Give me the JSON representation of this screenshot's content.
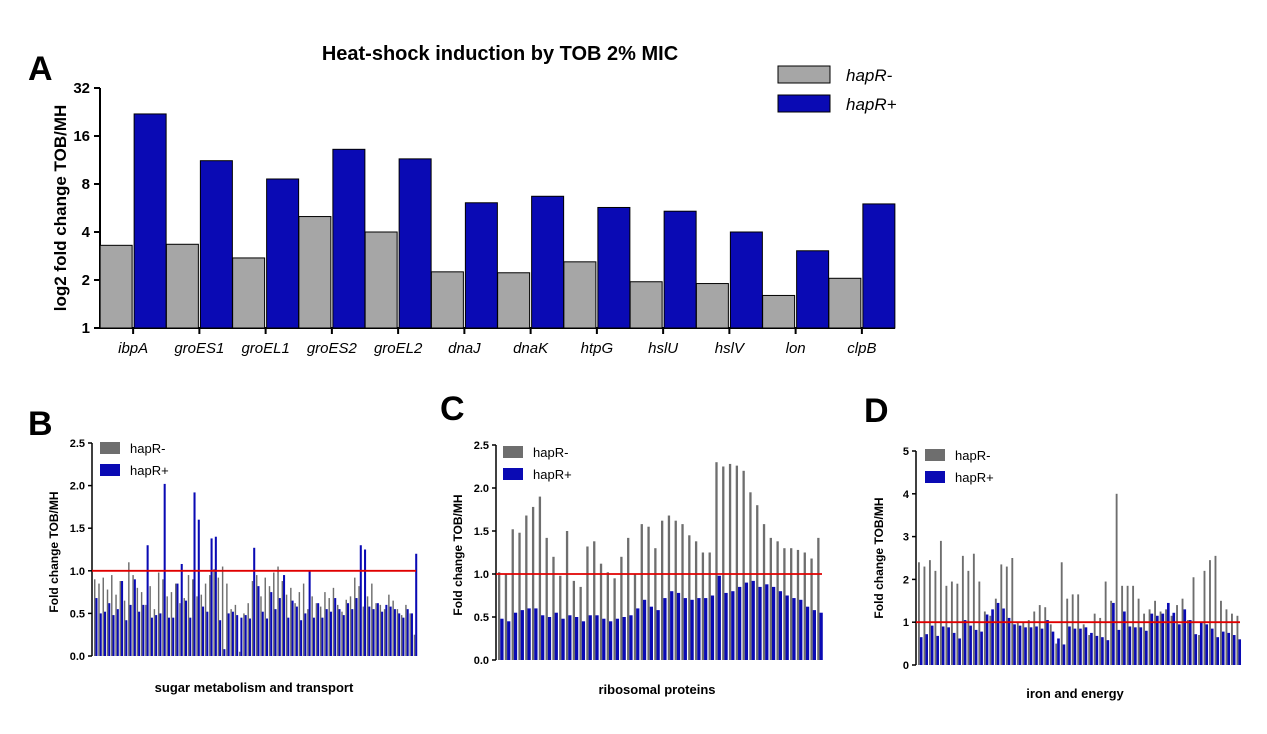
{
  "colors": {
    "hapR_minus_A": "#a6a6a6",
    "hapR_plus": "#0a0ab4",
    "hapR_minus_small": "#6e6e6e",
    "reference_line": "#e00000"
  },
  "panels": {
    "A": "A",
    "B": "B",
    "C": "C",
    "D": "D"
  },
  "chart_data": [
    {
      "panel": "A",
      "type": "bar",
      "title": "Heat-shock induction by TOB 2% MIC",
      "ylabel": "log2 fold change TOB/MH",
      "xlabel": "",
      "yscale": "log2",
      "ylim": [
        1,
        32
      ],
      "yticks": [
        "1",
        "2",
        "4",
        "8",
        "16",
        "32"
      ],
      "legend_position": "top-right",
      "categories": [
        "ibpA",
        "groES1",
        "groEL1",
        "groES2",
        "groEL2",
        "dnaJ",
        "dnaK",
        "htpG",
        "hslU",
        "hslV",
        "lon",
        "clpB"
      ],
      "series": [
        {
          "name": "hapR-",
          "values": [
            3.3,
            3.35,
            2.75,
            5.0,
            4.0,
            2.25,
            2.22,
            2.6,
            1.95,
            1.9,
            1.6,
            2.05
          ]
        },
        {
          "name": "hapR+",
          "values": [
            22,
            11.2,
            8.6,
            13.2,
            11.5,
            6.1,
            6.7,
            5.7,
            5.4,
            4.0,
            3.05,
            6.0
          ]
        }
      ]
    },
    {
      "panel": "B",
      "type": "bar",
      "title": "",
      "ylabel": "Fold change TOB/MH",
      "xlabel": "sugar metabolism and transport",
      "ylim": [
        0,
        2.5
      ],
      "yticks": [
        "0.0",
        "0.5",
        "1.0",
        "1.5",
        "2.0",
        "2.5"
      ],
      "reference_line": 1.0,
      "legend_position": "top-left",
      "series": [
        {
          "name": "hapR-",
          "values": [
            0.9,
            0.85,
            0.92,
            0.78,
            0.95,
            0.72,
            0.88,
            0.65,
            1.1,
            0.95,
            0.8,
            0.75,
            0.6,
            0.82,
            0.55,
            0.98,
            0.9,
            0.7,
            0.75,
            0.85,
            0.62,
            0.68,
            0.95,
            0.9,
            0.7,
            0.72,
            0.85,
            0.95,
            1.02,
            0.92,
            1.05,
            0.85,
            0.55,
            0.6,
            0.05,
            0.5,
            0.62,
            0.88,
            0.95,
            0.7,
            0.92,
            0.82,
            0.98,
            1.05,
            0.88,
            0.72,
            0.8,
            0.62,
            0.75,
            0.85,
            0.55,
            0.7,
            0.62,
            0.58,
            0.75,
            0.68,
            0.8,
            0.6,
            0.52,
            0.66,
            0.7,
            0.92,
            0.82,
            0.58,
            0.7,
            0.85,
            0.62,
            0.6,
            0.55,
            0.72,
            0.65,
            0.55,
            0.48,
            0.6,
            0.5,
            0.25
          ]
        },
        {
          "name": "hapR+",
          "values": [
            0.68,
            0.5,
            0.52,
            0.62,
            0.48,
            0.55,
            0.88,
            0.42,
            0.6,
            0.9,
            0.52,
            0.6,
            1.3,
            0.45,
            0.48,
            0.5,
            2.02,
            0.45,
            0.45,
            0.85,
            1.08,
            0.65,
            0.45,
            1.92,
            1.6,
            0.58,
            0.52,
            1.38,
            1.4,
            0.42,
            0.08,
            0.5,
            0.52,
            0.48,
            0.45,
            0.48,
            0.44,
            1.27,
            0.82,
            0.52,
            0.44,
            0.75,
            0.55,
            0.68,
            0.95,
            0.45,
            0.65,
            0.58,
            0.42,
            0.5,
            1.0,
            0.45,
            0.62,
            0.45,
            0.55,
            0.52,
            0.68,
            0.55,
            0.48,
            0.62,
            0.55,
            0.68,
            1.3,
            1.25,
            0.58,
            0.55,
            0.62,
            0.52,
            0.6,
            0.58,
            0.55,
            0.5,
            0.45,
            0.55,
            0.5,
            1.2
          ]
        }
      ]
    },
    {
      "panel": "C",
      "type": "bar",
      "title": "",
      "ylabel": "Fold change TOB/MH",
      "xlabel": "ribosomal proteins",
      "ylim": [
        0,
        2.5
      ],
      "yticks": [
        "0.0",
        "0.5",
        "1.0",
        "1.5",
        "2.0",
        "2.5"
      ],
      "reference_line": 1.0,
      "legend_position": "top-left",
      "series": [
        {
          "name": "hapR-",
          "values": [
            1.02,
            1.0,
            1.52,
            1.48,
            1.68,
            1.78,
            1.9,
            1.42,
            1.2,
            0.98,
            1.5,
            0.92,
            0.85,
            1.32,
            1.38,
            1.12,
            1.02,
            0.95,
            1.2,
            1.42,
            1.0,
            1.58,
            1.55,
            1.3,
            1.62,
            1.68,
            1.62,
            1.58,
            1.45,
            1.38,
            1.25,
            1.25,
            2.3,
            2.25,
            2.28,
            2.26,
            2.2,
            1.95,
            1.8,
            1.58,
            1.42,
            1.38,
            1.3,
            1.3,
            1.28,
            1.25,
            1.18,
            1.42
          ]
        },
        {
          "name": "hapR+",
          "values": [
            0.48,
            0.45,
            0.55,
            0.58,
            0.6,
            0.6,
            0.52,
            0.5,
            0.55,
            0.48,
            0.52,
            0.5,
            0.45,
            0.52,
            0.52,
            0.48,
            0.45,
            0.48,
            0.5,
            0.52,
            0.6,
            0.7,
            0.62,
            0.58,
            0.72,
            0.8,
            0.78,
            0.72,
            0.7,
            0.72,
            0.72,
            0.75,
            0.98,
            0.78,
            0.8,
            0.85,
            0.9,
            0.92,
            0.85,
            0.88,
            0.85,
            0.8,
            0.75,
            0.72,
            0.7,
            0.62,
            0.58,
            0.55
          ]
        }
      ]
    },
    {
      "panel": "D",
      "type": "bar",
      "title": "",
      "ylabel": "Fold change TOB/MH",
      "xlabel": "iron and energy",
      "ylim": [
        0,
        5
      ],
      "yticks": [
        "0",
        "1",
        "2",
        "3",
        "4",
        "5"
      ],
      "reference_line": 1.0,
      "legend_position": "top-left",
      "series": [
        {
          "name": "hapR-",
          "values": [
            2.4,
            2.3,
            2.45,
            2.2,
            2.9,
            1.85,
            1.95,
            1.9,
            2.55,
            2.2,
            2.6,
            1.95,
            1.25,
            1.15,
            1.55,
            2.35,
            2.3,
            2.5,
            1.0,
            1.0,
            1.05,
            1.25,
            1.4,
            1.35,
            0.95,
            0.5,
            2.4,
            1.55,
            1.65,
            1.65,
            0.95,
            0.7,
            1.2,
            1.1,
            1.95,
            1.5,
            4.0,
            1.85,
            1.85,
            1.85,
            1.55,
            1.2,
            1.3,
            1.5,
            1.25,
            1.3,
            1.15,
            1.4,
            1.55,
            1.05,
            2.05,
            0.7,
            2.2,
            2.45,
            2.55,
            1.5,
            1.3,
            1.2,
            1.15
          ]
        },
        {
          "name": "hapR+",
          "values": [
            0.65,
            0.72,
            0.92,
            0.68,
            0.9,
            0.88,
            0.75,
            0.62,
            1.05,
            0.92,
            0.82,
            0.78,
            1.18,
            1.3,
            1.45,
            1.32,
            1.1,
            0.95,
            0.92,
            0.88,
            0.88,
            0.9,
            0.85,
            1.05,
            0.78,
            0.62,
            0.48,
            0.9,
            0.85,
            0.85,
            0.88,
            0.75,
            0.68,
            0.65,
            0.58,
            1.45,
            0.82,
            1.25,
            0.9,
            0.88,
            0.88,
            0.8,
            1.2,
            1.15,
            1.2,
            1.45,
            1.22,
            0.95,
            1.3,
            1.05,
            0.72,
            1.0,
            0.95,
            0.85,
            0.65,
            0.78,
            0.75,
            0.7,
            0.6
          ]
        }
      ]
    }
  ]
}
